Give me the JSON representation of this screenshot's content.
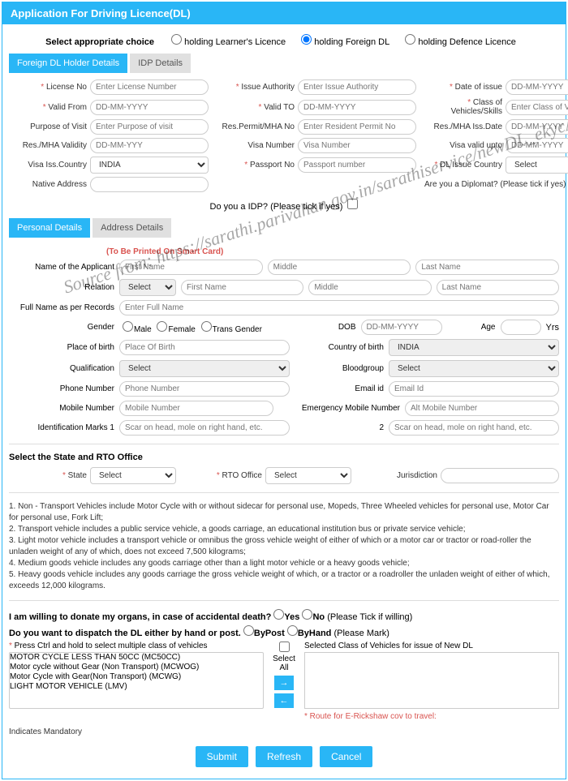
{
  "header": {
    "title": "Application For Driving Licence(DL)"
  },
  "choice": {
    "label": "Select appropriate choice",
    "opt1": "holding Learner's Licence",
    "opt2": "holding Foreign DL",
    "opt3": "holding Defence Licence"
  },
  "tabs1": {
    "a": "Foreign DL Holder Details",
    "b": "IDP Details"
  },
  "f": {
    "licenseNo": {
      "label": "License No",
      "ph": "Enter License Number"
    },
    "issueAuth": {
      "label": "Issue Authority",
      "ph": "Enter Issue Authority"
    },
    "dateIssue": {
      "label": "Date of issue",
      "ph": "DD-MM-YYYY"
    },
    "validFrom": {
      "label": "Valid From",
      "ph": "DD-MM-YYYY"
    },
    "validTo": {
      "label": "Valid TO",
      "ph": "DD-MM-YYYY"
    },
    "covSkills": {
      "label": "Class of Vehicles/Skills",
      "ph": "Enter Class of Vehicles/Skills"
    },
    "purpose": {
      "label": "Purpose of Visit",
      "ph": "Enter Purpose of visit"
    },
    "resPermit": {
      "label": "Res.Permit/MHA No",
      "ph": "Enter Resident Permit No"
    },
    "resMhaDate": {
      "label": "Res./MHA Iss.Date",
      "ph": "DD-MM-YYYY"
    },
    "resMhaVal": {
      "label": "Res./MHA Validity",
      "ph": "DD-MM-YYY"
    },
    "visaNo": {
      "label": "Visa Number",
      "ph": "Visa Number"
    },
    "visaValid": {
      "label": "Visa valid upto",
      "ph": "DD-MM-YYYY"
    },
    "visaCountry": {
      "label": "Visa Iss.Country",
      "val": "INDIA"
    },
    "passport": {
      "label": "Passport No",
      "ph": "Passport number"
    },
    "dlCountry": {
      "label": "DL Issue Country",
      "val": "Select"
    },
    "nativeAddr": {
      "label": "Native Address",
      "ph": ""
    },
    "diplomat": {
      "label": "Are you a Diplomat? (Please tick if yes)"
    }
  },
  "idpQ": "Do you a IDP? (Please tick if yes)",
  "tabs2": {
    "a": "Personal Details",
    "b": "Address Details"
  },
  "smartNote": "(To Be Printed On Smart Card)",
  "p": {
    "name": {
      "label": "Name of the Applicant",
      "ph1": "First Name",
      "ph2": "Middle",
      "ph3": "Last Name"
    },
    "relation": {
      "label": "Relation",
      "sel": "Select",
      "ph1": "First Name",
      "ph2": "Middle",
      "ph3": "Last Name"
    },
    "fullName": {
      "label": "Full Name as per Records",
      "ph": "Enter Full Name"
    },
    "gender": {
      "label": "Gender",
      "m": "Male",
      "f": "Female",
      "t": "Trans Gender"
    },
    "dob": {
      "label": "DOB",
      "ph": "DD-MM-YYYY"
    },
    "age": {
      "label": "Age",
      "unit": "Yrs"
    },
    "pob": {
      "label": "Place of birth",
      "ph": "Place Of Birth"
    },
    "cob": {
      "label": "Country of birth",
      "val": "INDIA"
    },
    "qual": {
      "label": "Qualification",
      "val": "Select"
    },
    "blood": {
      "label": "Bloodgroup",
      "val": "Select"
    },
    "phone": {
      "label": "Phone Number",
      "ph": "Phone Number"
    },
    "email": {
      "label": "Email id",
      "ph": "Email Id"
    },
    "mobile": {
      "label": "Mobile Number",
      "ph": "Mobile Number"
    },
    "emob": {
      "label": "Emergency Mobile Number",
      "ph": "Alt Mobile Number"
    },
    "id1": {
      "label": "Identification Marks 1",
      "ph": "Scar on head, mole on right hand, etc."
    },
    "id2": {
      "label": "2",
      "ph": "Scar on head, mole on right hand, etc."
    }
  },
  "rto": {
    "title": "Select the State and RTO Office",
    "state": {
      "label": "State",
      "val": "Select"
    },
    "office": {
      "label": "RTO Office",
      "val": "Select"
    },
    "juris": {
      "label": "Jurisdiction"
    }
  },
  "notes": {
    "n1": "1. Non - Transport Vehicles include Motor Cycle with or without sidecar for personal use, Mopeds, Three Wheeled vehicles for personal use, Motor Car for personal use, Fork Lift;",
    "n2": "2. Transport vehicle includes a public service vehicle, a goods carriage, an educational institution bus or private service vehicle;",
    "n3": "3. Light motor vehicle includes a transport vehicle or omnibus the gross vehicle weight of either of which or a motor car or tractor or road-roller the unladen weight of any of which, does not exceed 7,500 kilograms;",
    "n4": "4. Medium goods vehicle includes any goods carriage other than a light motor vehicle or a heavy goods vehicle;",
    "n5": "5. Heavy goods vehicle includes any goods carriage the gross vehicle weight of which, or a tractor or a roadroller the unladen weight of either of which, exceeds 12,000 kilograms."
  },
  "q": {
    "organ": "I am willing to donate my organs, in case of accidental death?",
    "organTick": "(Please Tick if willing)",
    "yes": "Yes",
    "no": "No",
    "dispatch": "Do you want to dispatch the DL either by hand or post.",
    "byPost": "ByPost",
    "byHand": "ByHand",
    "dispatchMark": "(Please Mark)"
  },
  "cov": {
    "hint": "Press Ctrl and hold to select multiple class of vehicles",
    "selectAll": "Select All",
    "selLabel": "Selected Class of Vehicles for issue of New DL",
    "route": "Route for E-Rickshaw cov to travel:",
    "items": [
      "MOTOR CYCLE LESS THAN 50CC (MC50CC)",
      "Motor cycle without Gear (Non Transport) (MCWOG)",
      "Motor Cycle with Gear(Non Transport) (MCWG)",
      "LIGHT MOTOR VEHICLE (LMV)"
    ]
  },
  "mandatory": "Indicates Mandatory",
  "btn": {
    "submit": "Submit",
    "refresh": "Refresh",
    "cancel": "Cancel"
  },
  "watermark": "Source from: https://sarathi.parivahan.gov.in/sarathiservice/newDL_ekycAuthenticat.do"
}
